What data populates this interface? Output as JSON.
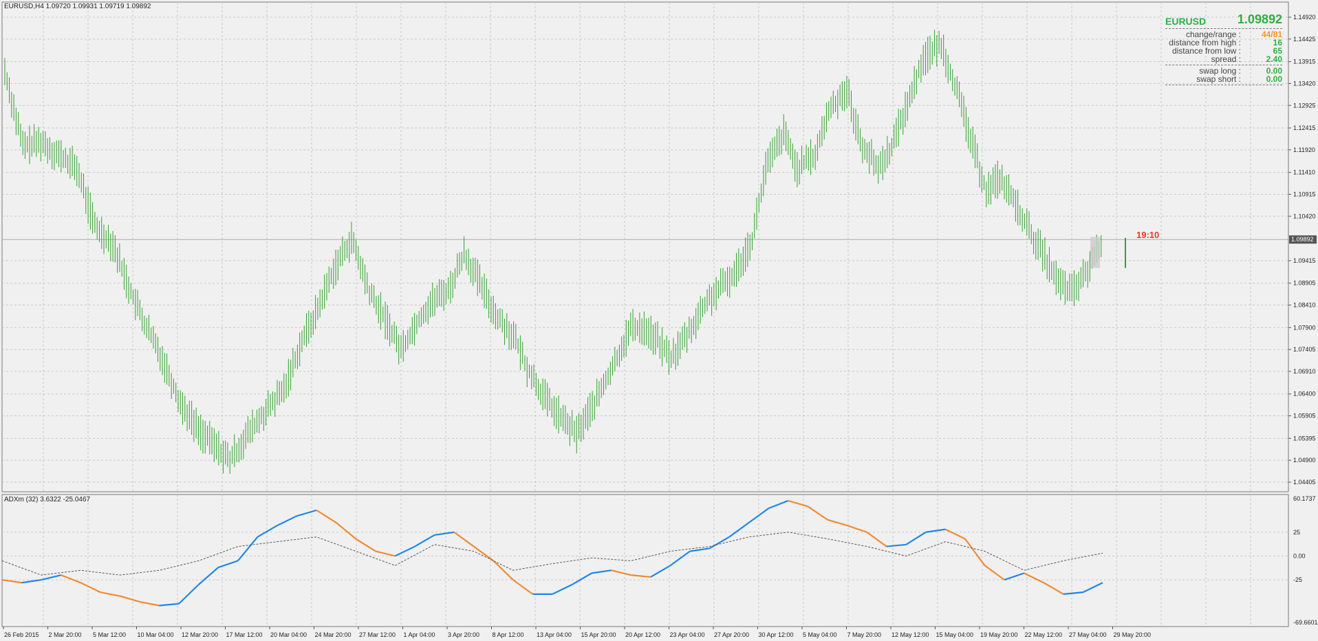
{
  "header": {
    "symbol_info": "EURUSD,H4 1.09720 1.09931 1.09719 1.09892"
  },
  "indicator": {
    "label": "ADXm (32) 3.6322 -25.0467"
  },
  "infobox": {
    "symbol": "EURUSD",
    "price": "1.09892",
    "rows": [
      {
        "label": "change/range :",
        "value": "44/81",
        "color": "#f39a1e"
      },
      {
        "label": "distance from high :",
        "value": "16",
        "color": "#2fae46"
      },
      {
        "label": "distance from low :",
        "value": "65",
        "color": "#2fae46"
      },
      {
        "label": "spread :",
        "value": "2.40",
        "color": "#2fae46"
      }
    ],
    "swap_rows": [
      {
        "label": "swap long :",
        "value": "0.00"
      },
      {
        "label": "swap short :",
        "value": "0.00"
      }
    ]
  },
  "timer": "19:10",
  "price_axis": {
    "labels": [
      "1.14920",
      "1.14425",
      "1.13915",
      "1.13420",
      "1.12925",
      "1.12415",
      "1.11920",
      "1.11410",
      "1.10915",
      "1.10420",
      "1.09415",
      "1.08905",
      "1.08410",
      "1.07900",
      "1.07405",
      "1.06910",
      "1.06400",
      "1.05905",
      "1.05395",
      "1.04900",
      "1.04405"
    ],
    "current": "1.09892"
  },
  "ind_axis": {
    "labels": [
      "60.1737",
      "25",
      "0.00",
      "-25",
      "-69.6601"
    ]
  },
  "time_axis": {
    "labels": [
      "26 Feb 2015",
      "2 Mar 20:00",
      "5 Mar 12:00",
      "10 Mar 04:00",
      "12 Mar 20:00",
      "17 Mar 12:00",
      "20 Mar 04:00",
      "24 Mar 20:00",
      "27 Mar 12:00",
      "1 Apr 04:00",
      "3 Apr 20:00",
      "8 Apr 12:00",
      "13 Apr 04:00",
      "15 Apr 20:00",
      "20 Apr 12:00",
      "23 Apr 04:00",
      "27 Apr 20:00",
      "30 Apr 12:00",
      "5 May 04:00",
      "7 May 20:00",
      "12 May 12:00",
      "15 May 04:00",
      "19 May 20:00",
      "22 May 12:00",
      "27 May 04:00",
      "29 May 20:00"
    ]
  },
  "chart_data": {
    "type": "line",
    "title": "EURUSD,H4",
    "price_close_path": [
      [
        0,
        1.137
      ],
      [
        8,
        1.12
      ],
      [
        16,
        1.121
      ],
      [
        24,
        1.118
      ],
      [
        32,
        1.115
      ],
      [
        40,
        1.102
      ],
      [
        48,
        1.098
      ],
      [
        56,
        1.087
      ],
      [
        62,
        1.08
      ],
      [
        70,
        1.072
      ],
      [
        78,
        1.062
      ],
      [
        86,
        1.056
      ],
      [
        92,
        1.053
      ],
      [
        100,
        1.049
      ],
      [
        108,
        1.055
      ],
      [
        116,
        1.06
      ],
      [
        124,
        1.065
      ],
      [
        132,
        1.076
      ],
      [
        138,
        1.082
      ],
      [
        146,
        1.092
      ],
      [
        154,
        1.099
      ],
      [
        162,
        1.087
      ],
      [
        170,
        1.08
      ],
      [
        176,
        1.074
      ],
      [
        184,
        1.081
      ],
      [
        190,
        1.085
      ],
      [
        198,
        1.088
      ],
      [
        204,
        1.096
      ],
      [
        212,
        1.088
      ],
      [
        218,
        1.082
      ],
      [
        226,
        1.077
      ],
      [
        232,
        1.07
      ],
      [
        240,
        1.063
      ],
      [
        248,
        1.058
      ],
      [
        254,
        1.055
      ],
      [
        262,
        1.062
      ],
      [
        270,
        1.07
      ],
      [
        278,
        1.079
      ],
      [
        284,
        1.079
      ],
      [
        290,
        1.076
      ],
      [
        296,
        1.072
      ],
      [
        304,
        1.078
      ],
      [
        312,
        1.085
      ],
      [
        318,
        1.088
      ],
      [
        324,
        1.091
      ],
      [
        332,
        1.099
      ],
      [
        338,
        1.115
      ],
      [
        346,
        1.123
      ],
      [
        352,
        1.115
      ],
      [
        360,
        1.118
      ],
      [
        366,
        1.128
      ],
      [
        374,
        1.133
      ],
      [
        380,
        1.121
      ],
      [
        388,
        1.115
      ],
      [
        394,
        1.12
      ],
      [
        402,
        1.131
      ],
      [
        408,
        1.14
      ],
      [
        416,
        1.143
      ],
      [
        422,
        1.134
      ],
      [
        430,
        1.12
      ],
      [
        436,
        1.11
      ],
      [
        442,
        1.113
      ],
      [
        450,
        1.106
      ],
      [
        456,
        1.1
      ],
      [
        462,
        1.095
      ],
      [
        468,
        1.089
      ],
      [
        474,
        1.087
      ],
      [
        480,
        1.091
      ],
      [
        484,
        1.095
      ],
      [
        487,
        1.098
      ]
    ],
    "price_range": [
      1.04405,
      1.1492
    ],
    "adx_solid": [
      [
        0,
        -25
      ],
      [
        10,
        -28
      ],
      [
        20,
        -25
      ],
      [
        30,
        -20
      ],
      [
        40,
        -28
      ],
      [
        50,
        -38
      ],
      [
        60,
        -42
      ],
      [
        70,
        -48
      ],
      [
        80,
        -52
      ],
      [
        90,
        -50
      ],
      [
        100,
        -30
      ],
      [
        110,
        -12
      ],
      [
        120,
        -5
      ],
      [
        130,
        20
      ],
      [
        140,
        32
      ],
      [
        150,
        42
      ],
      [
        160,
        48
      ],
      [
        170,
        35
      ],
      [
        180,
        18
      ],
      [
        190,
        5
      ],
      [
        200,
        0
      ],
      [
        210,
        10
      ],
      [
        220,
        22
      ],
      [
        230,
        25
      ],
      [
        240,
        10
      ],
      [
        250,
        -5
      ],
      [
        260,
        -25
      ],
      [
        270,
        -40
      ],
      [
        280,
        -40
      ],
      [
        290,
        -30
      ],
      [
        300,
        -18
      ],
      [
        310,
        -15
      ],
      [
        320,
        -20
      ],
      [
        330,
        -22
      ],
      [
        340,
        -10
      ],
      [
        350,
        5
      ],
      [
        360,
        8
      ],
      [
        370,
        20
      ],
      [
        380,
        35
      ],
      [
        390,
        50
      ],
      [
        400,
        58
      ],
      [
        410,
        52
      ],
      [
        420,
        38
      ],
      [
        430,
        32
      ],
      [
        440,
        25
      ],
      [
        450,
        10
      ],
      [
        460,
        12
      ],
      [
        470,
        25
      ],
      [
        480,
        28
      ],
      [
        490,
        18
      ],
      [
        500,
        -10
      ],
      [
        510,
        -25
      ],
      [
        520,
        -18
      ],
      [
        530,
        -28
      ],
      [
        540,
        -40
      ],
      [
        550,
        -38
      ],
      [
        560,
        -28
      ]
    ],
    "adx_dashed": [
      [
        0,
        -5
      ],
      [
        20,
        -20
      ],
      [
        40,
        -15
      ],
      [
        60,
        -20
      ],
      [
        80,
        -15
      ],
      [
        100,
        -5
      ],
      [
        120,
        10
      ],
      [
        140,
        15
      ],
      [
        160,
        20
      ],
      [
        180,
        5
      ],
      [
        200,
        -10
      ],
      [
        220,
        12
      ],
      [
        240,
        5
      ],
      [
        260,
        -15
      ],
      [
        280,
        -8
      ],
      [
        300,
        -2
      ],
      [
        320,
        -5
      ],
      [
        340,
        5
      ],
      [
        360,
        10
      ],
      [
        380,
        20
      ],
      [
        400,
        25
      ],
      [
        420,
        18
      ],
      [
        440,
        10
      ],
      [
        460,
        0
      ],
      [
        480,
        15
      ],
      [
        500,
        5
      ],
      [
        520,
        -15
      ],
      [
        540,
        -5
      ],
      [
        560,
        3
      ]
    ],
    "adx_range": [
      -69.6601,
      60.1737
    ]
  },
  "colors": {
    "bull": "#34a030",
    "adx_up": "#1f86e8",
    "adx_down": "#f08a30",
    "grid": "#c8c8c8"
  }
}
